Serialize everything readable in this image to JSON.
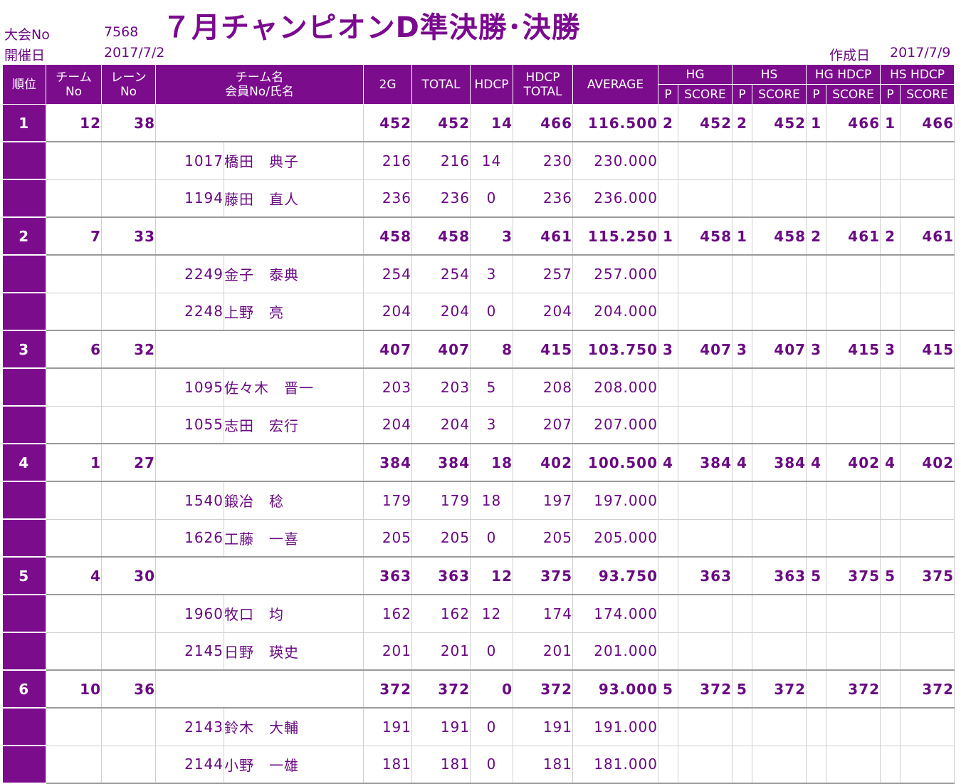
{
  "header": {
    "tournament_no_label": "大会No",
    "tournament_no": "7568",
    "date_label": "開催日",
    "date": "2017/7/2",
    "title": "７月チャンピオンD準決勝･決勝",
    "created_label": "作成日",
    "created_date": "2017/7/9"
  },
  "columns": {
    "rank": "順位",
    "team_no_1": "チーム",
    "team_no_2": "No",
    "lane_no_1": "レーン",
    "lane_no_2": "No",
    "team_name_1": "チーム名",
    "team_name_2": "会員No/氏名",
    "g2": "2G",
    "total": "TOTAL",
    "hdcp": "HDCP",
    "hdcp_total_1": "HDCP",
    "hdcp_total_2": "TOTAL",
    "average": "AVERAGE",
    "hg": "HG",
    "hs": "HS",
    "hg_hdcp": "HG HDCP",
    "hs_hdcp": "HS HDCP",
    "p": "P",
    "score": "SCORE"
  },
  "teams": [
    {
      "rank": "1",
      "team_no": "12",
      "lane_no": "38",
      "g2": "452",
      "total": "452",
      "hdcp": "14",
      "hdcp_total": "466",
      "average": "116.500",
      "hg_p": "2",
      "hg_score": "452",
      "hs_p": "2",
      "hs_score": "452",
      "hgh_p": "1",
      "hgh_score": "466",
      "hsh_p": "1",
      "hsh_score": "466",
      "members": [
        {
          "no": "1017",
          "name": "橋田　典子",
          "g2": "216",
          "total": "216",
          "hdcp": "14",
          "hdcp_total": "230",
          "average": "230.000"
        },
        {
          "no": "1194",
          "name": "藤田　直人",
          "g2": "236",
          "total": "236",
          "hdcp": "0",
          "hdcp_total": "236",
          "average": "236.000"
        }
      ]
    },
    {
      "rank": "2",
      "team_no": "7",
      "lane_no": "33",
      "g2": "458",
      "total": "458",
      "hdcp": "3",
      "hdcp_total": "461",
      "average": "115.250",
      "hg_p": "1",
      "hg_score": "458",
      "hs_p": "1",
      "hs_score": "458",
      "hgh_p": "2",
      "hgh_score": "461",
      "hsh_p": "2",
      "hsh_score": "461",
      "members": [
        {
          "no": "2249",
          "name": "金子　泰典",
          "g2": "254",
          "total": "254",
          "hdcp": "3",
          "hdcp_total": "257",
          "average": "257.000"
        },
        {
          "no": "2248",
          "name": "上野　亮",
          "g2": "204",
          "total": "204",
          "hdcp": "0",
          "hdcp_total": "204",
          "average": "204.000"
        }
      ]
    },
    {
      "rank": "3",
      "team_no": "6",
      "lane_no": "32",
      "g2": "407",
      "total": "407",
      "hdcp": "8",
      "hdcp_total": "415",
      "average": "103.750",
      "hg_p": "3",
      "hg_score": "407",
      "hs_p": "3",
      "hs_score": "407",
      "hgh_p": "3",
      "hgh_score": "415",
      "hsh_p": "3",
      "hsh_score": "415",
      "members": [
        {
          "no": "1095",
          "name": "佐々木　晋一",
          "g2": "203",
          "total": "203",
          "hdcp": "5",
          "hdcp_total": "208",
          "average": "208.000"
        },
        {
          "no": "1055",
          "name": "志田　宏行",
          "g2": "204",
          "total": "204",
          "hdcp": "3",
          "hdcp_total": "207",
          "average": "207.000"
        }
      ]
    },
    {
      "rank": "4",
      "team_no": "1",
      "lane_no": "27",
      "g2": "384",
      "total": "384",
      "hdcp": "18",
      "hdcp_total": "402",
      "average": "100.500",
      "hg_p": "4",
      "hg_score": "384",
      "hs_p": "4",
      "hs_score": "384",
      "hgh_p": "4",
      "hgh_score": "402",
      "hsh_p": "4",
      "hsh_score": "402",
      "members": [
        {
          "no": "1540",
          "name": "鍛冶　稔",
          "g2": "179",
          "total": "179",
          "hdcp": "18",
          "hdcp_total": "197",
          "average": "197.000"
        },
        {
          "no": "1626",
          "name": "工藤　一喜",
          "g2": "205",
          "total": "205",
          "hdcp": "0",
          "hdcp_total": "205",
          "average": "205.000"
        }
      ]
    },
    {
      "rank": "5",
      "team_no": "4",
      "lane_no": "30",
      "g2": "363",
      "total": "363",
      "hdcp": "12",
      "hdcp_total": "375",
      "average": "93.750",
      "hg_p": "",
      "hg_score": "363",
      "hs_p": "",
      "hs_score": "363",
      "hgh_p": "5",
      "hgh_score": "375",
      "hsh_p": "5",
      "hsh_score": "375",
      "members": [
        {
          "no": "1960",
          "name": "牧口　均",
          "g2": "162",
          "total": "162",
          "hdcp": "12",
          "hdcp_total": "174",
          "average": "174.000"
        },
        {
          "no": "2145",
          "name": "日野　瑛史",
          "g2": "201",
          "total": "201",
          "hdcp": "0",
          "hdcp_total": "201",
          "average": "201.000"
        }
      ]
    },
    {
      "rank": "6",
      "team_no": "10",
      "lane_no": "36",
      "g2": "372",
      "total": "372",
      "hdcp": "0",
      "hdcp_total": "372",
      "average": "93.000",
      "hg_p": "5",
      "hg_score": "372",
      "hs_p": "5",
      "hs_score": "372",
      "hgh_p": "",
      "hgh_score": "372",
      "hsh_p": "",
      "hsh_score": "372",
      "members": [
        {
          "no": "2143",
          "name": "鈴木　大輔",
          "g2": "191",
          "total": "191",
          "hdcp": "0",
          "hdcp_total": "191",
          "average": "191.000"
        },
        {
          "no": "2144",
          "name": "小野　一雄",
          "g2": "181",
          "total": "181",
          "hdcp": "0",
          "hdcp_total": "181",
          "average": "181.000"
        }
      ]
    }
  ]
}
